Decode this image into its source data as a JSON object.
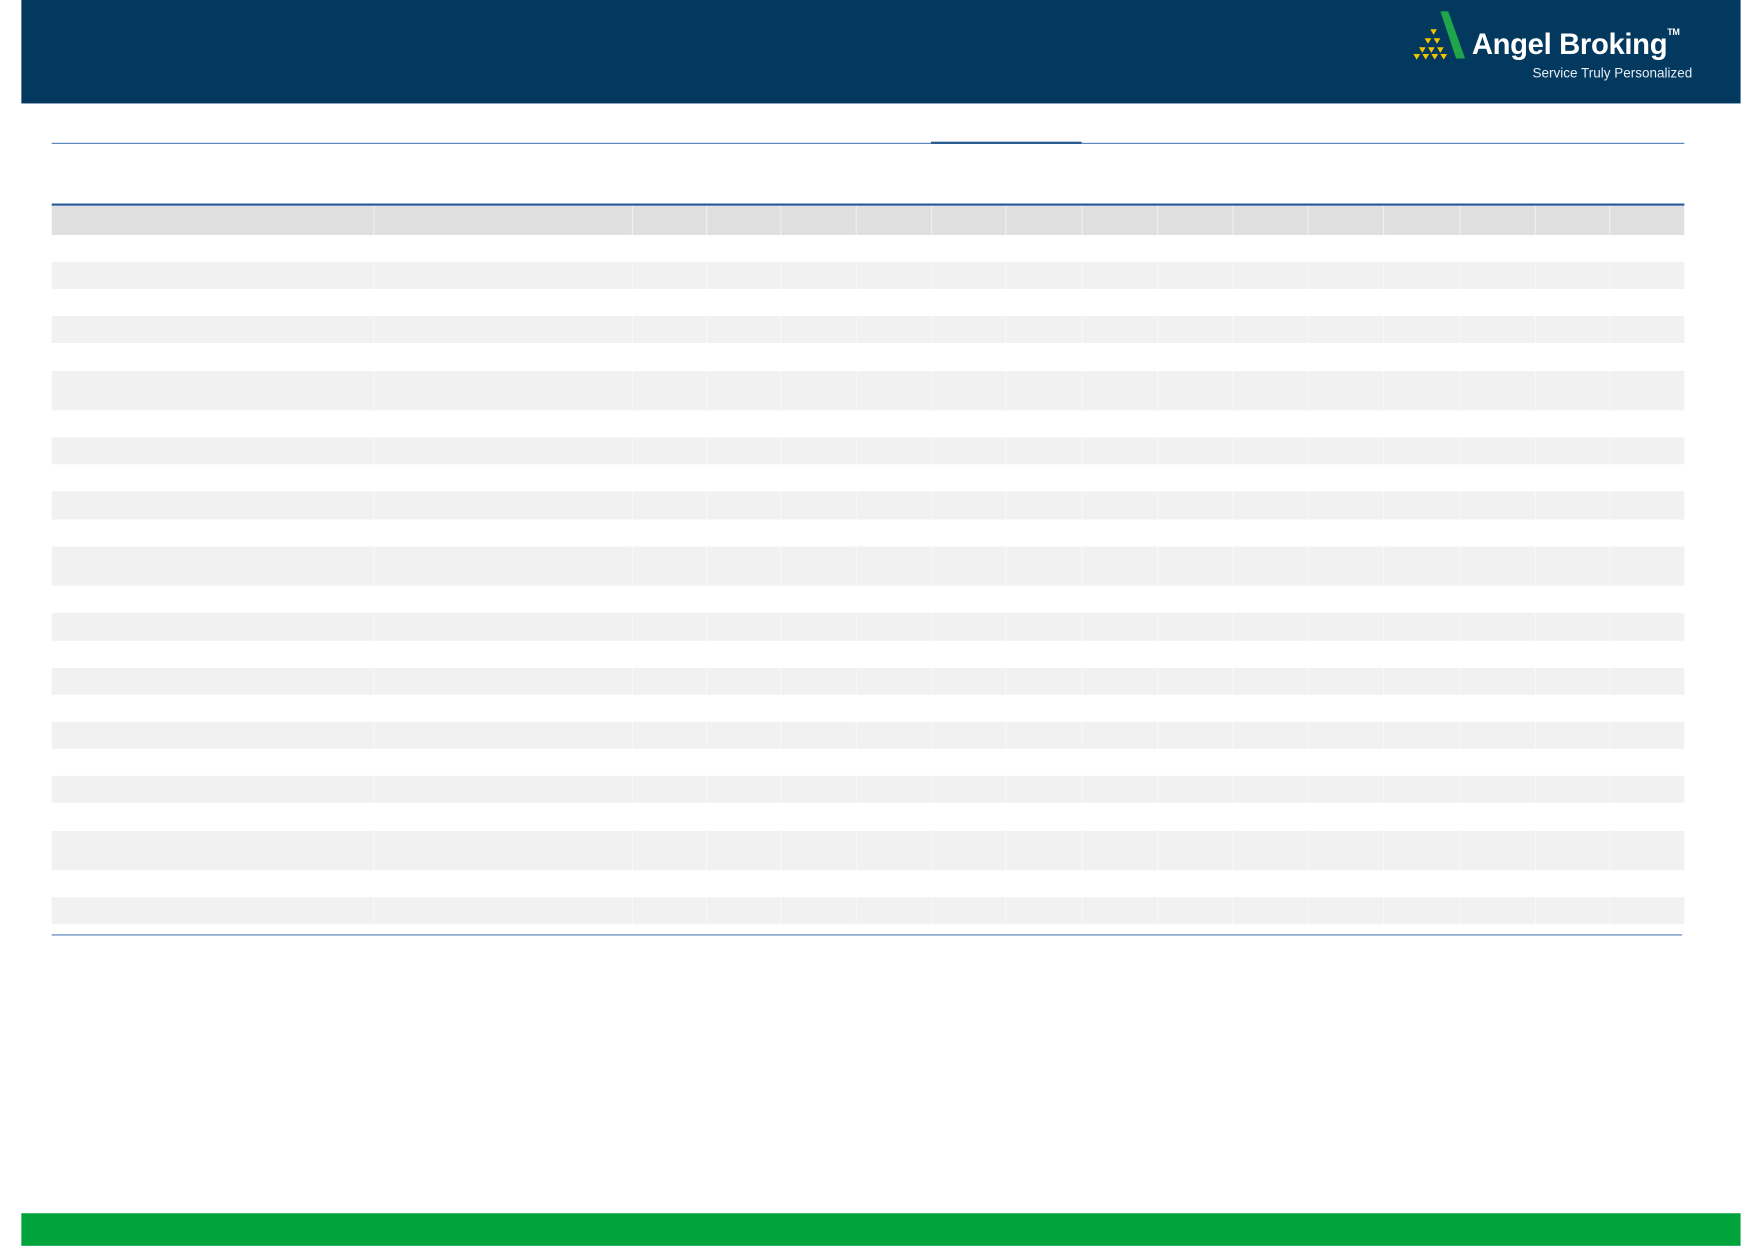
{
  "brand": {
    "name": "Angel Broking",
    "trademark": "TM",
    "tagline": "Service Truly Personalized",
    "colors": {
      "header": "#03385f",
      "footer": "#00a33c",
      "logo_green": "#1fa64a",
      "logo_gold": "#f2c500"
    }
  },
  "table": {
    "column_count": 17,
    "header_fill": "#e0e0e0",
    "stripe_fill": "#f1f1f1",
    "data_row_count": 24
  }
}
